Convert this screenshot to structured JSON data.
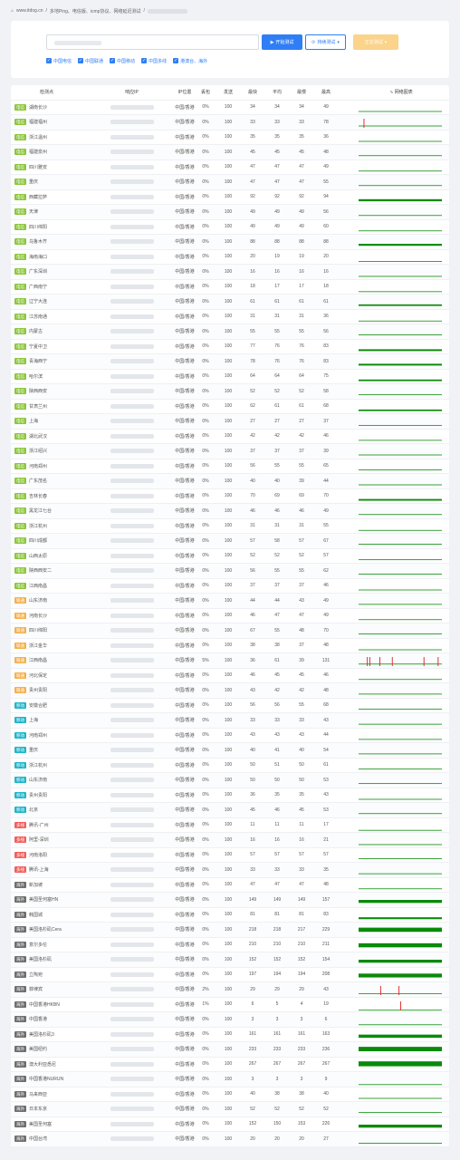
{
  "breadcrumb": {
    "home": "www.itdog.cn",
    "sep": "/",
    "page": "多地Ping、电信版、icmp协议、网络延迟测试"
  },
  "colors": {
    "primary": "#2f7ef5",
    "warning": "#fbd38b",
    "telecom": "#8dc63f",
    "unicom": "#f5b04f",
    "mobile": "#1fb5c9",
    "multi": "#f25f5c",
    "overseas": "#6f6f6f",
    "graph": "#0a8a0a",
    "spike": "#e02020"
  },
  "toolbar": {
    "start_label": "开始测试",
    "continuous_label": "持续测试",
    "continuous_arrow": "▾",
    "stop_label": "正在测试",
    "stop_arrow": "▾",
    "start_icon": "play-icon",
    "continuous_icon": "refresh-icon"
  },
  "filters": [
    "中国电信",
    "中国联通",
    "中国移动",
    "中国多线",
    "港澳台、海外"
  ],
  "columns": [
    "检测点",
    "响应IP",
    "IP位置",
    "丢包",
    "发送",
    "最快",
    "平均",
    "最慢",
    "最高",
    "∿ 网络图表"
  ],
  "rows": [
    {
      "tag": "电信",
      "type": "telecom",
      "node": "湖南长沙",
      "loc": "中国/香港",
      "loss": "0%",
      "sent": "100",
      "fast": "34",
      "avg": "34",
      "slow": "34",
      "max": "49",
      "level": 0.2,
      "spikes": []
    },
    {
      "tag": "电信",
      "type": "telecom",
      "node": "福建福州",
      "loc": "中国/香港",
      "loss": "0%",
      "sent": "100",
      "fast": "33",
      "avg": "33",
      "slow": "33",
      "max": "78",
      "level": 0.2,
      "spikes": [
        0.06
      ]
    },
    {
      "tag": "电信",
      "type": "telecom",
      "node": "浙江温州",
      "loc": "中国/香港",
      "loss": "0%",
      "sent": "100",
      "fast": "35",
      "avg": "35",
      "slow": "35",
      "max": "36",
      "level": 0.2,
      "spikes": []
    },
    {
      "tag": "电信",
      "type": "telecom",
      "node": "福建泉州",
      "loc": "中国/香港",
      "loss": "0%",
      "sent": "100",
      "fast": "45",
      "avg": "45",
      "slow": "45",
      "max": "48",
      "level": 0.22,
      "spikes": []
    },
    {
      "tag": "电信",
      "type": "telecom",
      "node": "四川雅安",
      "loc": "中国/香港",
      "loss": "0%",
      "sent": "100",
      "fast": "47",
      "avg": "47",
      "slow": "47",
      "max": "49",
      "level": 0.22,
      "spikes": []
    },
    {
      "tag": "电信",
      "type": "telecom",
      "node": "重庆",
      "loc": "中国/香港",
      "loss": "0%",
      "sent": "100",
      "fast": "47",
      "avg": "47",
      "slow": "47",
      "max": "55",
      "level": 0.22,
      "spikes": []
    },
    {
      "tag": "电信",
      "type": "telecom",
      "node": "西藏拉萨",
      "loc": "中国/香港",
      "loss": "0%",
      "sent": "100",
      "fast": "92",
      "avg": "92",
      "slow": "92",
      "max": "94",
      "level": 0.35,
      "spikes": []
    },
    {
      "tag": "电信",
      "type": "telecom",
      "node": "天津",
      "loc": "中国/香港",
      "loss": "0%",
      "sent": "100",
      "fast": "49",
      "avg": "49",
      "slow": "49",
      "max": "56",
      "level": 0.22,
      "spikes": []
    },
    {
      "tag": "电信",
      "type": "telecom",
      "node": "四川绵阳",
      "loc": "中国/香港",
      "loss": "0%",
      "sent": "100",
      "fast": "49",
      "avg": "49",
      "slow": "49",
      "max": "60",
      "level": 0.22,
      "spikes": []
    },
    {
      "tag": "电信",
      "type": "telecom",
      "node": "乌鲁木齐",
      "loc": "中国/香港",
      "loss": "0%",
      "sent": "100",
      "fast": "88",
      "avg": "88",
      "slow": "88",
      "max": "88",
      "level": 0.33,
      "spikes": []
    },
    {
      "tag": "电信",
      "type": "telecom",
      "node": "海南海口",
      "loc": "中国/香港",
      "loss": "0%",
      "sent": "100",
      "fast": "20",
      "avg": "19",
      "slow": "19",
      "max": "20",
      "level": 0.15,
      "spikes": []
    },
    {
      "tag": "电信",
      "type": "telecom",
      "node": "广东深圳",
      "loc": "中国/香港",
      "loss": "0%",
      "sent": "100",
      "fast": "16",
      "avg": "16",
      "slow": "16",
      "max": "16",
      "level": 0.12,
      "spikes": []
    },
    {
      "tag": "电信",
      "type": "telecom",
      "node": "广西南宁",
      "loc": "中国/香港",
      "loss": "0%",
      "sent": "100",
      "fast": "18",
      "avg": "17",
      "slow": "17",
      "max": "18",
      "level": 0.13,
      "spikes": []
    },
    {
      "tag": "电信",
      "type": "telecom",
      "node": "辽宁大连",
      "loc": "中国/香港",
      "loss": "0%",
      "sent": "100",
      "fast": "61",
      "avg": "61",
      "slow": "61",
      "max": "61",
      "level": 0.26,
      "spikes": []
    },
    {
      "tag": "电信",
      "type": "telecom",
      "node": "江苏南通",
      "loc": "中国/香港",
      "loss": "0%",
      "sent": "100",
      "fast": "31",
      "avg": "31",
      "slow": "31",
      "max": "36",
      "level": 0.18,
      "spikes": []
    },
    {
      "tag": "电信",
      "type": "telecom",
      "node": "内蒙古",
      "loc": "中国/香港",
      "loss": "0%",
      "sent": "100",
      "fast": "55",
      "avg": "55",
      "slow": "55",
      "max": "56",
      "level": 0.24,
      "spikes": []
    },
    {
      "tag": "电信",
      "type": "telecom",
      "node": "宁夏中卫",
      "loc": "中国/香港",
      "loss": "0%",
      "sent": "100",
      "fast": "77",
      "avg": "76",
      "slow": "76",
      "max": "83",
      "level": 0.3,
      "spikes": []
    },
    {
      "tag": "电信",
      "type": "telecom",
      "node": "青海西宁",
      "loc": "中国/香港",
      "loss": "0%",
      "sent": "100",
      "fast": "78",
      "avg": "76",
      "slow": "76",
      "max": "83",
      "level": 0.3,
      "spikes": []
    },
    {
      "tag": "电信",
      "type": "telecom",
      "node": "哈尔滨",
      "loc": "中国/香港",
      "loss": "0%",
      "sent": "100",
      "fast": "64",
      "avg": "64",
      "slow": "64",
      "max": "75",
      "level": 0.27,
      "spikes": []
    },
    {
      "tag": "电信",
      "type": "telecom",
      "node": "陕西西安",
      "loc": "中国/香港",
      "loss": "0%",
      "sent": "100",
      "fast": "52",
      "avg": "52",
      "slow": "52",
      "max": "58",
      "level": 0.23,
      "spikes": []
    },
    {
      "tag": "电信",
      "type": "telecom",
      "node": "甘肃兰州",
      "loc": "中国/香港",
      "loss": "0%",
      "sent": "100",
      "fast": "62",
      "avg": "61",
      "slow": "61",
      "max": "68",
      "level": 0.26,
      "spikes": []
    },
    {
      "tag": "电信",
      "type": "telecom",
      "node": "上海",
      "loc": "中国/香港",
      "loss": "0%",
      "sent": "100",
      "fast": "27",
      "avg": "27",
      "slow": "27",
      "max": "37",
      "level": 0.17,
      "spikes": []
    },
    {
      "tag": "电信",
      "type": "telecom",
      "node": "湖北武汉",
      "loc": "中国/香港",
      "loss": "0%",
      "sent": "100",
      "fast": "42",
      "avg": "42",
      "slow": "42",
      "max": "46",
      "level": 0.21,
      "spikes": []
    },
    {
      "tag": "电信",
      "type": "telecom",
      "node": "浙江绍兴",
      "loc": "中国/香港",
      "loss": "0%",
      "sent": "100",
      "fast": "37",
      "avg": "37",
      "slow": "37",
      "max": "39",
      "level": 0.2,
      "spikes": []
    },
    {
      "tag": "电信",
      "type": "telecom",
      "node": "河南郑州",
      "loc": "中国/香港",
      "loss": "0%",
      "sent": "100",
      "fast": "56",
      "avg": "55",
      "slow": "55",
      "max": "65",
      "level": 0.24,
      "spikes": []
    },
    {
      "tag": "电信",
      "type": "telecom",
      "node": "广东茂名",
      "loc": "中国/香港",
      "loss": "0%",
      "sent": "100",
      "fast": "40",
      "avg": "40",
      "slow": "39",
      "max": "44",
      "level": 0.2,
      "spikes": []
    },
    {
      "tag": "电信",
      "type": "telecom",
      "node": "吉林长春",
      "loc": "中国/香港",
      "loss": "0%",
      "sent": "100",
      "fast": "70",
      "avg": "69",
      "slow": "69",
      "max": "70",
      "level": 0.28,
      "spikes": []
    },
    {
      "tag": "电信",
      "type": "telecom",
      "node": "黑龙江七台",
      "loc": "中国/香港",
      "loss": "0%",
      "sent": "100",
      "fast": "46",
      "avg": "46",
      "slow": "46",
      "max": "49",
      "level": 0.22,
      "spikes": []
    },
    {
      "tag": "电信",
      "type": "telecom",
      "node": "浙江杭州",
      "loc": "中国/香港",
      "loss": "0%",
      "sent": "100",
      "fast": "31",
      "avg": "31",
      "slow": "31",
      "max": "55",
      "level": 0.18,
      "spikes": []
    },
    {
      "tag": "电信",
      "type": "telecom",
      "node": "四川成都",
      "loc": "中国/香港",
      "loss": "0%",
      "sent": "100",
      "fast": "57",
      "avg": "58",
      "slow": "57",
      "max": "67",
      "level": 0.25,
      "spikes": []
    },
    {
      "tag": "电信",
      "type": "telecom",
      "node": "山西太原",
      "loc": "中国/香港",
      "loss": "0%",
      "sent": "100",
      "fast": "52",
      "avg": "52",
      "slow": "52",
      "max": "57",
      "level": 0.23,
      "spikes": []
    },
    {
      "tag": "电信",
      "type": "telecom",
      "node": "陕西西安二",
      "loc": "中国/香港",
      "loss": "0%",
      "sent": "100",
      "fast": "56",
      "avg": "55",
      "slow": "55",
      "max": "62",
      "level": 0.24,
      "spikes": []
    },
    {
      "tag": "电信",
      "type": "telecom",
      "node": "江西南昌",
      "loc": "中国/香港",
      "loss": "0%",
      "sent": "100",
      "fast": "37",
      "avg": "37",
      "slow": "37",
      "max": "46",
      "level": 0.2,
      "spikes": []
    },
    {
      "tag": "联通",
      "type": "unicom",
      "node": "山东济南",
      "loc": "中国/香港",
      "loss": "0%",
      "sent": "100",
      "fast": "44",
      "avg": "44",
      "slow": "43",
      "max": "49",
      "level": 0.21,
      "spikes": []
    },
    {
      "tag": "联通",
      "type": "unicom",
      "node": "河南长沙",
      "loc": "中国/香港",
      "loss": "0%",
      "sent": "100",
      "fast": "46",
      "avg": "47",
      "slow": "47",
      "max": "49",
      "level": 0.22,
      "spikes": []
    },
    {
      "tag": "联通",
      "type": "unicom",
      "node": "四川绵阳",
      "loc": "中国/香港",
      "loss": "0%",
      "sent": "100",
      "fast": "67",
      "avg": "55",
      "slow": "48",
      "max": "70",
      "level": 0.25,
      "spikes": []
    },
    {
      "tag": "联通",
      "type": "unicom",
      "node": "浙江金华",
      "loc": "中国/香港",
      "loss": "0%",
      "sent": "100",
      "fast": "38",
      "avg": "38",
      "slow": "37",
      "max": "48",
      "level": 0.2,
      "spikes": []
    },
    {
      "tag": "联通",
      "type": "unicom",
      "node": "江西南昌",
      "loc": "中国/香港",
      "loss": "5%",
      "sent": "100",
      "fast": "36",
      "avg": "61",
      "slow": "39",
      "max": "131",
      "level": 0.22,
      "spikes": [
        0.1,
        0.13,
        0.25,
        0.4,
        0.78,
        0.95
      ]
    },
    {
      "tag": "联通",
      "type": "unicom",
      "node": "河北保定",
      "loc": "中国/香港",
      "loss": "0%",
      "sent": "100",
      "fast": "46",
      "avg": "45",
      "slow": "45",
      "max": "46",
      "level": 0.22,
      "spikes": []
    },
    {
      "tag": "联通",
      "type": "unicom",
      "node": "贵州贵阳",
      "loc": "中国/香港",
      "loss": "0%",
      "sent": "100",
      "fast": "43",
      "avg": "42",
      "slow": "42",
      "max": "48",
      "level": 0.21,
      "spikes": []
    },
    {
      "tag": "移动",
      "type": "mobile",
      "node": "安徽合肥",
      "loc": "中国/香港",
      "loss": "0%",
      "sent": "100",
      "fast": "56",
      "avg": "56",
      "slow": "55",
      "max": "68",
      "level": 0.24,
      "spikes": []
    },
    {
      "tag": "移动",
      "type": "mobile",
      "node": "上海",
      "loc": "中国/香港",
      "loss": "0%",
      "sent": "100",
      "fast": "33",
      "avg": "33",
      "slow": "33",
      "max": "43",
      "level": 0.19,
      "spikes": []
    },
    {
      "tag": "移动",
      "type": "mobile",
      "node": "河南郑州",
      "loc": "中国/香港",
      "loss": "0%",
      "sent": "100",
      "fast": "43",
      "avg": "43",
      "slow": "43",
      "max": "44",
      "level": 0.21,
      "spikes": []
    },
    {
      "tag": "移动",
      "type": "mobile",
      "node": "重庆",
      "loc": "中国/香港",
      "loss": "0%",
      "sent": "100",
      "fast": "40",
      "avg": "41",
      "slow": "40",
      "max": "54",
      "level": 0.21,
      "spikes": []
    },
    {
      "tag": "移动",
      "type": "mobile",
      "node": "浙江杭州",
      "loc": "中国/香港",
      "loss": "0%",
      "sent": "100",
      "fast": "50",
      "avg": "51",
      "slow": "50",
      "max": "61",
      "level": 0.23,
      "spikes": []
    },
    {
      "tag": "移动",
      "type": "mobile",
      "node": "山东济南",
      "loc": "中国/香港",
      "loss": "0%",
      "sent": "100",
      "fast": "50",
      "avg": "50",
      "slow": "50",
      "max": "53",
      "level": 0.23,
      "spikes": []
    },
    {
      "tag": "移动",
      "type": "mobile",
      "node": "贵州贵阳",
      "loc": "中国/香港",
      "loss": "0%",
      "sent": "100",
      "fast": "36",
      "avg": "35",
      "slow": "35",
      "max": "43",
      "level": 0.2,
      "spikes": []
    },
    {
      "tag": "移动",
      "type": "mobile",
      "node": "北京",
      "loc": "中国/香港",
      "loss": "0%",
      "sent": "100",
      "fast": "45",
      "avg": "46",
      "slow": "45",
      "max": "53",
      "level": 0.22,
      "spikes": []
    },
    {
      "tag": "多线",
      "type": "multi",
      "node": "腾讯-广州",
      "loc": "中国/香港",
      "loss": "0%",
      "sent": "100",
      "fast": "11",
      "avg": "11",
      "slow": "11",
      "max": "17",
      "level": 0.1,
      "spikes": []
    },
    {
      "tag": "多线",
      "type": "multi",
      "node": "阿里-深圳",
      "loc": "中国/香港",
      "loss": "0%",
      "sent": "100",
      "fast": "16",
      "avg": "16",
      "slow": "16",
      "max": "21",
      "level": 0.12,
      "spikes": []
    },
    {
      "tag": "多线",
      "type": "multi",
      "node": "河南洛阳",
      "loc": "中国/香港",
      "loss": "0%",
      "sent": "100",
      "fast": "57",
      "avg": "57",
      "slow": "57",
      "max": "57",
      "level": 0.25,
      "spikes": []
    },
    {
      "tag": "多线",
      "type": "multi",
      "node": "腾讯-上海",
      "loc": "中国/香港",
      "loss": "0%",
      "sent": "100",
      "fast": "33",
      "avg": "33",
      "slow": "33",
      "max": "35",
      "level": 0.19,
      "spikes": []
    },
    {
      "tag": "海外",
      "type": "overseas",
      "node": "新加坡",
      "loc": "中国/香港",
      "loss": "0%",
      "sent": "100",
      "fast": "47",
      "avg": "47",
      "slow": "47",
      "max": "48",
      "level": 0.22,
      "spikes": []
    },
    {
      "tag": "海外",
      "type": "overseas",
      "node": "美国圣何塞HN",
      "loc": "中国/香港",
      "loss": "0%",
      "sent": "100",
      "fast": "149",
      "avg": "149",
      "slow": "149",
      "max": "157",
      "level": 0.5,
      "spikes": []
    },
    {
      "tag": "海外",
      "type": "overseas",
      "node": "韩国城",
      "loc": "中国/香港",
      "loss": "0%",
      "sent": "100",
      "fast": "81",
      "avg": "81",
      "slow": "81",
      "max": "83",
      "level": 0.32,
      "spikes": []
    },
    {
      "tag": "海外",
      "type": "overseas",
      "node": "美国洛杉矶Cera",
      "loc": "中国/香港",
      "loss": "0%",
      "sent": "100",
      "fast": "218",
      "avg": "218",
      "slow": "217",
      "max": "229",
      "level": 0.7,
      "spikes": []
    },
    {
      "tag": "海外",
      "type": "overseas",
      "node": "意尔多伦",
      "loc": "中国/香港",
      "loss": "0%",
      "sent": "100",
      "fast": "210",
      "avg": "210",
      "slow": "210",
      "max": "211",
      "level": 0.68,
      "spikes": []
    },
    {
      "tag": "海外",
      "type": "overseas",
      "node": "美国洛杉矶",
      "loc": "中国/香港",
      "loss": "0%",
      "sent": "100",
      "fast": "152",
      "avg": "152",
      "slow": "152",
      "max": "154",
      "level": 0.5,
      "spikes": []
    },
    {
      "tag": "海外",
      "type": "overseas",
      "node": "立陶宛",
      "loc": "中国/香港",
      "loss": "0%",
      "sent": "100",
      "fast": "197",
      "avg": "194",
      "slow": "194",
      "max": "208",
      "level": 0.64,
      "spikes": []
    },
    {
      "tag": "海外",
      "type": "overseas",
      "node": "菲律宾",
      "loc": "中国/香港",
      "loss": "2%",
      "sent": "100",
      "fast": "29",
      "avg": "29",
      "slow": "29",
      "max": "43",
      "level": 0.17,
      "spikes": [
        0.26,
        0.48
      ]
    },
    {
      "tag": "海外",
      "type": "overseas",
      "node": "中国香港HKBN",
      "loc": "中国/香港",
      "loss": "1%",
      "sent": "100",
      "fast": "6",
      "avg": "5",
      "slow": "4",
      "max": "19",
      "level": 0.06,
      "spikes": [
        0.5
      ]
    },
    {
      "tag": "海外",
      "type": "overseas",
      "node": "中国香港",
      "loc": "中国/香港",
      "loss": "0%",
      "sent": "100",
      "fast": "3",
      "avg": "3",
      "slow": "3",
      "max": "6",
      "level": 0.05,
      "spikes": []
    },
    {
      "tag": "海外",
      "type": "overseas",
      "node": "美国洛杉矶3",
      "loc": "中国/香港",
      "loss": "0%",
      "sent": "100",
      "fast": "161",
      "avg": "161",
      "slow": "161",
      "max": "163",
      "level": 0.53,
      "spikes": []
    },
    {
      "tag": "海外",
      "type": "overseas",
      "node": "美国纽约",
      "loc": "中国/香港",
      "loss": "0%",
      "sent": "100",
      "fast": "233",
      "avg": "233",
      "slow": "233",
      "max": "236",
      "level": 0.74,
      "spikes": []
    },
    {
      "tag": "海外",
      "type": "overseas",
      "node": "澳大利亚悉尼",
      "loc": "中国/香港",
      "loss": "0%",
      "sent": "100",
      "fast": "267",
      "avg": "267",
      "slow": "267",
      "max": "267",
      "level": 0.82,
      "spikes": []
    },
    {
      "tag": "海外",
      "type": "overseas",
      "node": "中国香港NURUN",
      "loc": "中国/香港",
      "loss": "0%",
      "sent": "100",
      "fast": "3",
      "avg": "3",
      "slow": "3",
      "max": "9",
      "level": 0.05,
      "spikes": []
    },
    {
      "tag": "海外",
      "type": "overseas",
      "node": "马来西亚",
      "loc": "中国/香港",
      "loss": "0%",
      "sent": "100",
      "fast": "40",
      "avg": "38",
      "slow": "38",
      "max": "40",
      "level": 0.2,
      "spikes": []
    },
    {
      "tag": "海外",
      "type": "overseas",
      "node": "日本东京",
      "loc": "中国/香港",
      "loss": "0%",
      "sent": "100",
      "fast": "52",
      "avg": "52",
      "slow": "52",
      "max": "52",
      "level": 0.23,
      "spikes": []
    },
    {
      "tag": "海外",
      "type": "overseas",
      "node": "美国圣何塞",
      "loc": "中国/香港",
      "loss": "0%",
      "sent": "100",
      "fast": "152",
      "avg": "150",
      "slow": "153",
      "max": "226",
      "level": 0.5,
      "spikes": []
    },
    {
      "tag": "海外",
      "type": "overseas",
      "node": "中国台湾",
      "loc": "中国/香港",
      "loss": "0%",
      "sent": "100",
      "fast": "20",
      "avg": "20",
      "slow": "20",
      "max": "27",
      "level": 0.15,
      "spikes": []
    }
  ]
}
